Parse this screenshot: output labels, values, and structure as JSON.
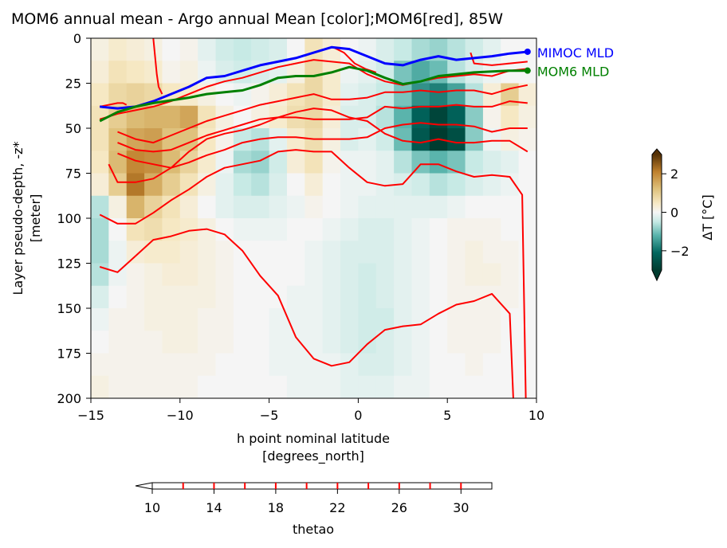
{
  "chart_data": {
    "type": "heatmap",
    "title": "MOM6 annual mean - Argo annual Mean [color];MOM6[red], 85W",
    "xlabel_line1": "h point nominal latitude",
    "xlabel_line2": "[degrees_north]",
    "ylabel_line1": "Layer pseudo-depth, -z*",
    "ylabel_line2": "[meter]",
    "xlim": [
      -15,
      10
    ],
    "ylim": [
      200,
      0
    ],
    "xticks": [
      -15,
      -10,
      -5,
      0,
      5,
      10
    ],
    "xtick_labels": [
      "−15",
      "−10",
      "−5",
      "0",
      "5",
      "10"
    ],
    "yticks": [
      0,
      25,
      50,
      75,
      100,
      125,
      150,
      175,
      200
    ],
    "ytick_labels": [
      "0",
      "25",
      "50",
      "75",
      "100",
      "125",
      "150",
      "175",
      "200"
    ],
    "colorbar": {
      "label": "ΔT [°C]",
      "range": [
        -3,
        3
      ],
      "ticks": [
        -2,
        0,
        2
      ],
      "tick_labels": [
        "−2",
        "0",
        "2"
      ],
      "colormap": "BrBG_r",
      "extend": "both"
    },
    "contour_colorbar": {
      "label": "thetao",
      "range": [
        10,
        32
      ],
      "ticks": [
        10,
        14,
        18,
        22,
        26,
        30
      ],
      "tick_labels": [
        "10",
        "14",
        "18",
        "22",
        "26",
        "30"
      ],
      "level_lines": [
        12,
        14,
        16,
        18,
        20,
        22,
        24,
        26,
        28,
        30
      ],
      "line_color": "#ff0000",
      "extend": "min"
    },
    "heatmap_lat_edges": [
      -15,
      -14,
      -13,
      -12,
      -11,
      -10,
      -9,
      -8,
      -7,
      -6,
      -5,
      -4,
      -3,
      -2,
      -1,
      0,
      1,
      2,
      3,
      4,
      5,
      6,
      7,
      8,
      9,
      10
    ],
    "heatmap_depth_edges": [
      0,
      12.5,
      25,
      37.5,
      50,
      62.5,
      75,
      87.5,
      100,
      112.5,
      125,
      137.5,
      150,
      162.5,
      175,
      187.5,
      200
    ],
    "delta_t": [
      [
        0.2,
        0.4,
        0.3,
        0.2,
        0.0,
        0.1,
        -0.2,
        -0.4,
        -0.5,
        -0.4,
        -0.3,
        0.0,
        0.6,
        0.3,
        0.0,
        -0.1,
        -0.3,
        -0.5,
        -0.7,
        -0.8,
        -0.6,
        -0.4,
        -0.2,
        0.0,
        0.0
      ],
      [
        0.3,
        0.6,
        0.5,
        0.4,
        0.1,
        0.2,
        -0.1,
        -0.3,
        -0.4,
        -0.3,
        -0.2,
        0.2,
        0.8,
        0.4,
        -0.1,
        -0.2,
        -0.4,
        -1.0,
        -1.3,
        -1.1,
        -0.6,
        -0.3,
        -0.1,
        0.0,
        0.0
      ],
      [
        0.5,
        0.8,
        0.9,
        0.8,
        0.5,
        0.4,
        0.2,
        0.0,
        -0.1,
        0.1,
        0.3,
        0.6,
        0.8,
        0.4,
        -0.2,
        -0.3,
        -0.5,
        -1.0,
        -1.6,
        -1.8,
        -1.4,
        -0.6,
        0.3,
        1.0,
        0.3
      ],
      [
        0.6,
        1.0,
        1.3,
        1.4,
        1.4,
        1.6,
        0.6,
        0.2,
        0.0,
        0.2,
        0.4,
        0.7,
        0.8,
        0.3,
        -0.3,
        -0.3,
        -0.6,
        -1.2,
        -2.2,
        -2.8,
        -2.2,
        -0.9,
        0.1,
        0.5,
        0.2
      ],
      [
        0.6,
        1.2,
        1.6,
        1.7,
        1.2,
        1.2,
        0.5,
        0.1,
        -0.5,
        -0.6,
        -0.2,
        0.4,
        0.7,
        0.2,
        -0.3,
        -0.2,
        -0.4,
        -1.1,
        -2.4,
        -3.0,
        -2.6,
        -0.9,
        -0.1,
        0.2,
        0.1
      ],
      [
        0.5,
        1.3,
        2.0,
        1.9,
        1.3,
        0.9,
        0.4,
        -0.1,
        -0.7,
        -0.8,
        -0.4,
        0.3,
        0.6,
        0.1,
        -0.1,
        -0.1,
        -0.2,
        -0.6,
        -1.0,
        -1.2,
        -1.0,
        -0.5,
        -0.3,
        -0.2,
        0.0
      ],
      [
        0.3,
        1.0,
        2.2,
        1.5,
        1.0,
        0.6,
        0.2,
        -0.2,
        -0.5,
        -0.6,
        -0.3,
        0.0,
        0.3,
        0.0,
        -0.1,
        -0.1,
        -0.2,
        -0.3,
        -0.4,
        -0.6,
        -0.5,
        -0.3,
        -0.2,
        -0.1,
        0.0
      ],
      [
        -0.6,
        0.2,
        1.4,
        0.9,
        0.6,
        0.3,
        0.0,
        -0.2,
        -0.3,
        -0.3,
        -0.2,
        -0.1,
        0.1,
        0.0,
        -0.1,
        -0.2,
        -0.2,
        -0.2,
        -0.2,
        -0.2,
        -0.1,
        0.0,
        0.0,
        0.0,
        0.0
      ],
      [
        -0.7,
        0.0,
        0.6,
        0.7,
        0.5,
        0.4,
        0.2,
        0.0,
        -0.1,
        -0.1,
        -0.1,
        0.0,
        0.0,
        -0.1,
        -0.2,
        -0.3,
        -0.3,
        -0.2,
        -0.1,
        0.0,
        0.1,
        0.1,
        0.1,
        0.0,
        0.0
      ],
      [
        -0.7,
        -0.1,
        0.3,
        0.4,
        0.4,
        0.3,
        0.2,
        0.1,
        0.0,
        0.0,
        0.0,
        0.0,
        -0.1,
        -0.2,
        -0.3,
        -0.3,
        -0.3,
        -0.2,
        -0.1,
        0.0,
        0.1,
        0.2,
        0.1,
        0.1,
        0.0
      ],
      [
        -0.6,
        -0.1,
        0.1,
        0.2,
        0.3,
        0.3,
        0.2,
        0.1,
        0.0,
        0.0,
        0.0,
        0.0,
        -0.1,
        -0.2,
        -0.3,
        -0.4,
        -0.3,
        -0.2,
        -0.1,
        0.0,
        0.1,
        0.2,
        0.2,
        0.1,
        0.0
      ],
      [
        -0.3,
        0.0,
        0.1,
        0.2,
        0.2,
        0.2,
        0.2,
        0.1,
        0.0,
        0.0,
        0.0,
        -0.1,
        -0.1,
        -0.2,
        -0.3,
        -0.4,
        -0.3,
        -0.2,
        -0.1,
        0.0,
        0.1,
        0.1,
        0.1,
        0.1,
        0.0
      ],
      [
        -0.1,
        0.1,
        0.1,
        0.2,
        0.2,
        0.2,
        0.1,
        0.1,
        0.0,
        0.0,
        -0.1,
        -0.1,
        -0.1,
        -0.2,
        -0.3,
        -0.4,
        -0.4,
        -0.2,
        -0.1,
        0.0,
        0.1,
        0.1,
        0.1,
        0.0,
        0.0
      ],
      [
        0.0,
        0.1,
        0.1,
        0.1,
        0.2,
        0.2,
        0.1,
        0.1,
        0.0,
        0.0,
        -0.1,
        -0.1,
        -0.1,
        -0.2,
        -0.3,
        -0.4,
        -0.3,
        -0.2,
        -0.1,
        0.0,
        0.1,
        0.1,
        0.1,
        0.0,
        0.0
      ],
      [
        0.1,
        0.1,
        0.1,
        0.1,
        0.1,
        0.1,
        0.1,
        0.0,
        0.0,
        0.0,
        -0.1,
        -0.1,
        -0.1,
        -0.1,
        -0.2,
        -0.3,
        -0.3,
        -0.2,
        -0.1,
        0.0,
        0.0,
        0.1,
        0.0,
        0.0,
        0.0
      ],
      [
        0.2,
        0.1,
        0.1,
        0.1,
        0.1,
        0.1,
        0.0,
        0.0,
        0.0,
        0.0,
        0.0,
        -0.1,
        -0.1,
        -0.1,
        -0.2,
        -0.2,
        -0.2,
        -0.1,
        -0.1,
        0.0,
        0.0,
        0.0,
        0.0,
        0.0,
        0.0
      ]
    ],
    "series": [
      {
        "name": "MIMOC MLD",
        "color": "#0000ff",
        "x": [
          -14.5,
          -13.5,
          -12.5,
          -11.5,
          -10.5,
          -9.5,
          -8.5,
          -7.5,
          -6.5,
          -5.5,
          -4.5,
          -3.5,
          -2.5,
          -1.5,
          -0.5,
          0.5,
          1.5,
          2.5,
          3.5,
          4.5,
          5.5,
          6.5,
          7.5,
          8.5,
          9.5
        ],
        "y": [
          38,
          39,
          38,
          35,
          31,
          27,
          22,
          21,
          18,
          15,
          13,
          11,
          8,
          5,
          6,
          10,
          14,
          15,
          12,
          10,
          12,
          11,
          10,
          8.5,
          7.5
        ]
      },
      {
        "name": "MOM6 MLD",
        "color": "#008000",
        "x": [
          -14.5,
          -13.5,
          -12.5,
          -11.5,
          -10.5,
          -9.5,
          -8.5,
          -7.5,
          -6.5,
          -5.5,
          -4.5,
          -3.5,
          -2.5,
          -1.5,
          -0.5,
          0.5,
          1.5,
          2.5,
          3.5,
          4.5,
          5.5,
          6.5,
          7.5,
          8.5,
          9.5
        ],
        "y": [
          46,
          41,
          38,
          36,
          34.5,
          33,
          31,
          30,
          29,
          26,
          22,
          21,
          21,
          19,
          16,
          18,
          22,
          25.5,
          24,
          21,
          20,
          19,
          18.5,
          18,
          18
        ]
      }
    ],
    "contour_lines": [
      {
        "x": [
          -11.5,
          -11.4,
          -11.3,
          -11.2,
          -11.0
        ],
        "y": [
          0,
          10,
          20,
          27,
          31
        ]
      },
      {
        "x": [
          -14.5,
          -14.0,
          -13.5,
          -13.2,
          -13.0
        ],
        "y": [
          38,
          37,
          36,
          36,
          37
        ]
      },
      {
        "x": [
          -1.4,
          -0.8,
          -0.2,
          0.4,
          1.0
        ],
        "y": [
          5,
          8,
          14,
          17,
          19
        ]
      },
      {
        "x": [
          6.3,
          6.5,
          7.5,
          8.5,
          9.5
        ],
        "y": [
          8,
          14,
          15,
          14,
          13
        ]
      },
      {
        "x": [
          -14.5,
          -13.5,
          -12.5,
          -11.5,
          -10.5,
          -9.5,
          -8.5,
          -7.5,
          -6.5,
          -5.5,
          -4.5,
          -3.5,
          -2.5,
          -1.5,
          -0.5,
          0.5,
          1.5,
          2.5,
          3.5,
          4.5,
          5.5,
          6.5,
          7.5,
          8.5,
          9.5
        ],
        "y": [
          45,
          42,
          40,
          38,
          35,
          31,
          27,
          24,
          22,
          19,
          16,
          14,
          12,
          13,
          14,
          20,
          24,
          26,
          24,
          22,
          21,
          20,
          21,
          18,
          17
        ]
      },
      {
        "x": [
          -13.5,
          -12.5,
          -11.5,
          -10.5,
          -9.5,
          -8.5,
          -7.5,
          -6.5,
          -5.5,
          -4.5,
          -3.5,
          -2.5,
          -1.5,
          -0.5,
          0.5,
          1.5,
          2.5,
          3.5,
          4.5,
          5.5,
          6.5,
          7.5,
          8.5,
          9.5
        ],
        "y": [
          52,
          56,
          58,
          54,
          50,
          46,
          43,
          40,
          37,
          35,
          33,
          31,
          34,
          34,
          33,
          30,
          30,
          29,
          30,
          29,
          29,
          31,
          28,
          26
        ]
      },
      {
        "x": [
          -13.5,
          -12.5,
          -11.5,
          -10.5,
          -9.5,
          -8.5,
          -7.5,
          -6.5,
          -5.5,
          -4.5,
          -3.5,
          -2.5,
          -1.5,
          -0.5,
          0.5,
          1.5,
          2.5,
          3.5,
          4.5,
          5.5,
          6.5,
          7.5,
          8.5,
          9.5
        ],
        "y": [
          58,
          62,
          63,
          62,
          58,
          54,
          51,
          48,
          45,
          44,
          44,
          45,
          45,
          45,
          44,
          38,
          39,
          38,
          38,
          37,
          38,
          38,
          35,
          36
        ]
      },
      {
        "x": [
          -13.5,
          -12.5,
          -11.5,
          -10.5,
          -9.5,
          -8.5,
          -7.5,
          -6.5,
          -5.5,
          -4.5,
          -3.5,
          -2.5,
          -1.5,
          -0.5,
          0.5,
          1.5,
          2.5,
          3.5,
          4.5,
          5.5,
          6.5,
          7.5,
          8.5,
          9.5
        ],
        "y": [
          64,
          68,
          70,
          72,
          69,
          65,
          62,
          58,
          56,
          55,
          55,
          56,
          56,
          56,
          55,
          50,
          48,
          47,
          48,
          48,
          49,
          52,
          50,
          50
        ]
      },
      {
        "x": [
          -14.0,
          -13.5,
          -12.5,
          -11.5,
          -10.5,
          -9.5,
          -8.5,
          -7.5,
          -6.5,
          -5.5,
          -4.5,
          -3.5,
          -2.5,
          -1.5,
          -0.5,
          0.5,
          1.5,
          2.5,
          3.5,
          4.5,
          5.5,
          6.5,
          7.5,
          8.5,
          9.5
        ],
        "y": [
          70,
          80,
          80,
          78,
          72,
          63,
          56,
          53,
          51,
          48,
          44,
          41,
          39,
          40,
          44,
          46,
          53,
          57,
          58,
          56,
          58,
          58,
          57,
          57,
          63
        ]
      },
      {
        "x": [
          -14.5,
          -13.5,
          -12.5,
          -11.5,
          -10.5,
          -9.5,
          -8.5,
          -7.5,
          -6.5,
          -5.5,
          -4.5,
          -3.5,
          -2.5,
          -1.5,
          -0.5,
          0.5,
          1.5,
          2.5,
          3.5,
          4.5,
          5.5,
          6.5,
          7.5,
          8.5,
          9.2,
          9.4
        ],
        "y": [
          98,
          103,
          103,
          97,
          90,
          84,
          77,
          72,
          70,
          68,
          63,
          62,
          63,
          63,
          72,
          80,
          82,
          81,
          70,
          70,
          74,
          77,
          76,
          77,
          87,
          200
        ]
      },
      {
        "x": [
          -14.5,
          -13.5,
          -12.5,
          -11.5,
          -10.5,
          -9.5,
          -8.5,
          -7.5,
          -6.5,
          -5.5,
          -4.5,
          -3.5,
          -2.5,
          -1.5,
          -0.5,
          0.5,
          1.5,
          2.5,
          3.5,
          4.5,
          5.5,
          6.5,
          7.5,
          8.5,
          8.7
        ],
        "y": [
          127,
          130,
          121,
          112,
          110,
          107,
          106,
          109,
          118,
          132,
          143,
          166,
          178,
          182,
          180,
          170,
          162,
          160,
          159,
          153,
          148,
          146,
          142,
          153,
          200
        ]
      }
    ]
  }
}
